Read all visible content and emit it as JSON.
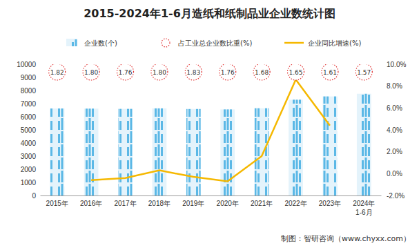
{
  "chart_data": {
    "type": "bar",
    "title": "2015-2024年1-6月造纸和纸制品业企业数统计图",
    "categories": [
      "2015年",
      "2016年",
      "2017年",
      "2018年",
      "2019年",
      "2020年",
      "2021年",
      "2022年",
      "2023年",
      "2024年\n1-6月"
    ],
    "series": [
      {
        "name": "企业数(个)",
        "type": "bar",
        "color": "#5bb8e6",
        "values": [
          6630,
          6620,
          6600,
          6640,
          6590,
          6560,
          6650,
          7300,
          7550,
          7750
        ]
      },
      {
        "name": "占工业总企业数比重(%)",
        "type": "scatter",
        "marker": "circle",
        "line_style": "dotted",
        "color": "#e03030",
        "data_labels": true,
        "values": [
          1.82,
          1.8,
          1.76,
          1.8,
          1.83,
          1.76,
          1.68,
          1.65,
          1.61,
          1.57
        ],
        "value_labels": [
          "1.82",
          "1.80",
          "1.76",
          "1.80",
          "1.83",
          "1.76",
          "1.68",
          "1.65",
          "1.61",
          "1.57"
        ]
      },
      {
        "name": "企业同比增速(%)",
        "type": "line",
        "axis": "y2",
        "color": "#f5b800",
        "values": [
          null,
          -0.6,
          -0.4,
          0.3,
          -0.3,
          -0.7,
          1.6,
          8.6,
          4.4,
          null
        ]
      }
    ],
    "ylim": [
      0,
      10000
    ],
    "yticks": [
      0,
      1000,
      2000,
      3000,
      4000,
      5000,
      6000,
      7000,
      8000,
      9000,
      10000
    ],
    "y2lim": [
      -2,
      10
    ],
    "y2ticks": [
      {
        "value": -2,
        "label": "-2.0%"
      },
      {
        "value": 0,
        "label": "0.0%"
      },
      {
        "value": 2,
        "label": "2.0%"
      },
      {
        "value": 4,
        "label": "4.0%"
      },
      {
        "value": 6,
        "label": "6.0%"
      },
      {
        "value": 8,
        "label": "8.0%"
      },
      {
        "value": 10,
        "label": "10.0%"
      }
    ],
    "legend": "top",
    "footer": "制图：智研咨询（www.chyxx.com）"
  }
}
